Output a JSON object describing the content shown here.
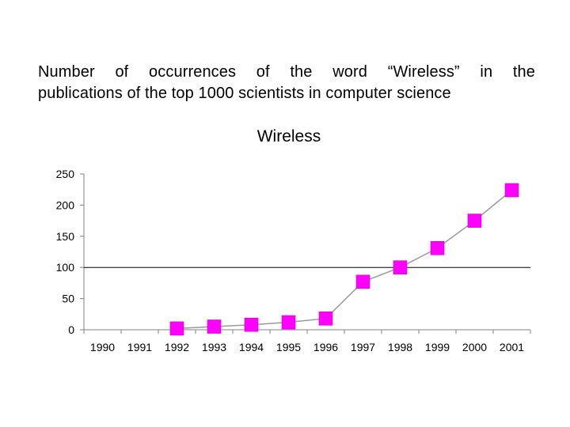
{
  "slide": {
    "heading_line1": "Number of occurrences of the word “Wireless” in the",
    "heading_line2": "publications of the top 1000 scientists in computer science"
  },
  "chart_data": {
    "type": "line",
    "title": "Wireless",
    "xlabel": "",
    "ylabel": "",
    "categories": [
      "1990",
      "1991",
      "1992",
      "1993",
      "1994",
      "1995",
      "1996",
      "1997",
      "1998",
      "1999",
      "2000",
      "2001"
    ],
    "series": [
      {
        "values": [
          null,
          null,
          2,
          5,
          8,
          12,
          18,
          77,
          100,
          131,
          175,
          224
        ]
      }
    ],
    "ylim": [
      0,
      250
    ],
    "yticks": [
      "0",
      "50",
      "100",
      "150",
      "200",
      "250"
    ],
    "grid": "single horizontal gridline at 100",
    "legend": "none",
    "colors": {
      "line": "#999999",
      "marker": "#ff00ff",
      "gridline": "#000000",
      "axis": "#808080"
    },
    "marker": "square"
  }
}
